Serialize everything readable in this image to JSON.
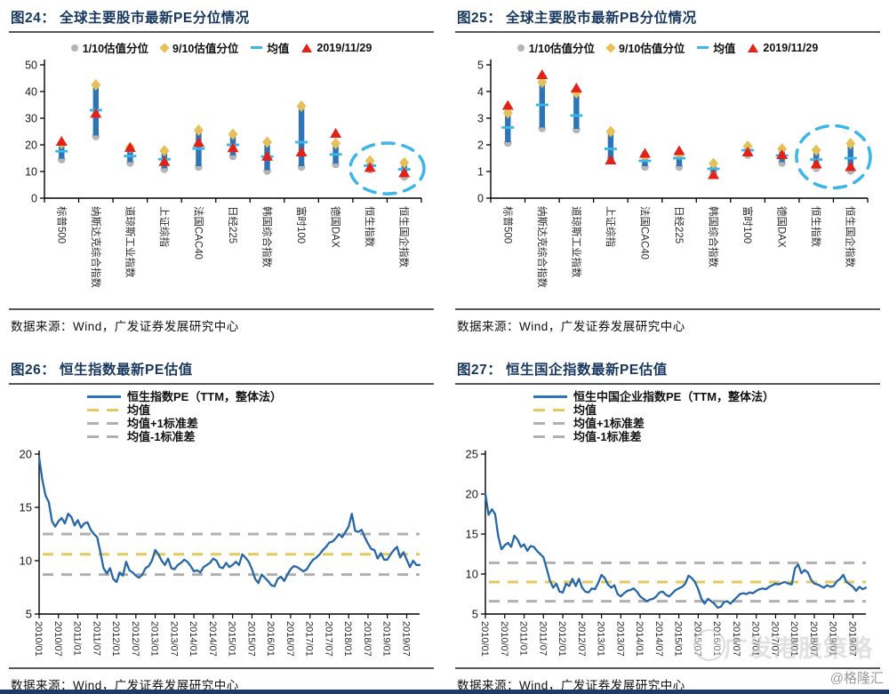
{
  "page": {
    "source_text": "数据来源：Wind，广发证券发展研究中心",
    "watermark_logo": "广发港股策略",
    "watermark_handle": "@格隆汇"
  },
  "colors": {
    "title_navy": "#17375e",
    "bar_blue": "#2e75b6",
    "line_blue": "#2667a8",
    "gray_marker": "#b5b5b5",
    "gold_marker": "#e6c159",
    "cyan_mean": "#3cb6e8",
    "red_current": "#e32119",
    "mean_dash_yellow": "#e5c85e",
    "std_dash_gray": "#b0b0b0",
    "highlight_ellipse": "#3cb6e8"
  },
  "panels": [
    {
      "title": "图24： 全球主要股市最新PE分位情况",
      "legend": [
        "1/10估值分位",
        "9/10估值分位",
        "均值",
        "2019/11/29"
      ],
      "chart_data": {
        "type": "range",
        "title": "全球主要股市最新PE分位情况",
        "ylim": [
          0,
          50
        ],
        "yticks": [
          0,
          10,
          20,
          30,
          40,
          50
        ],
        "categories": [
          "标普500",
          "纳斯达克综合指数",
          "道琼斯工业指数",
          "上证综指",
          "法国CAC40",
          "日经225",
          "韩国综合指数",
          "富时100",
          "德国DAX",
          "恒生指数",
          "恒生国企指数"
        ],
        "series": [
          {
            "name": "1/10估值分位",
            "marker": "circle",
            "values": [
              14.8,
              23.5,
              13.5,
              11.2,
              12.0,
              16.0,
              10.5,
              12.0,
              13.0,
              11.0,
              8.3
            ]
          },
          {
            "name": "9/10估值分位",
            "marker": "diamond",
            "values": [
              20.6,
              42.5,
              19.0,
              17.8,
              25.5,
              24.0,
              21.0,
              34.5,
              20.5,
              14.0,
              13.3
            ]
          },
          {
            "name": "均值",
            "marker": "dash",
            "values": [
              17.6,
              33.0,
              15.8,
              14.6,
              18.6,
              20.0,
              15.6,
              21.0,
              16.4,
              12.2,
              10.8
            ]
          },
          {
            "name": "2019/11/29",
            "marker": "triangle",
            "values": [
              21.0,
              31.5,
              18.7,
              13.4,
              20.6,
              18.6,
              15.4,
              17.0,
              24.0,
              11.2,
              9.2
            ]
          }
        ],
        "highlight_categories": [
          9,
          10
        ]
      }
    },
    {
      "title": "图25： 全球主要股市最新PB分位情况",
      "legend": [
        "1/10估值分位",
        "9/10估值分位",
        "均值",
        "2019/11/29"
      ],
      "chart_data": {
        "type": "range",
        "title": "全球主要股市最新PB分位情况",
        "ylim": [
          0,
          5
        ],
        "yticks": [
          0,
          1,
          2,
          3,
          4,
          5
        ],
        "categories": [
          "标普500",
          "纳斯达克综合指数",
          "道琼斯工业指数",
          "上证综指",
          "法国CAC40",
          "日经225",
          "韩国综合指数",
          "富时100",
          "德国DAX",
          "恒生指数",
          "恒生国企指数"
        ],
        "series": [
          {
            "name": "1/10估值分位",
            "marker": "circle",
            "values": [
              2.1,
              2.65,
              2.6,
              1.5,
              1.2,
              1.2,
              0.98,
              1.65,
              1.35,
              1.15,
              1.05
            ]
          },
          {
            "name": "9/10估值分位",
            "marker": "diamond",
            "values": [
              3.2,
              4.35,
              3.95,
              2.5,
              1.55,
              1.65,
              1.3,
              1.95,
              1.85,
              1.8,
              2.05
            ]
          },
          {
            "name": "均值",
            "marker": "dash",
            "values": [
              2.65,
              3.5,
              3.1,
              1.85,
              1.4,
              1.5,
              1.1,
              1.8,
              1.6,
              1.45,
              1.5
            ]
          },
          {
            "name": "2019/11/29",
            "marker": "triangle",
            "values": [
              3.45,
              4.6,
              4.1,
              1.4,
              1.65,
              1.75,
              0.85,
              1.7,
              1.6,
              1.25,
              1.15
            ]
          }
        ],
        "highlight_categories": [
          9,
          10
        ]
      }
    },
    {
      "title": "图26： 恒生指数最新PE估值",
      "legend": [
        "恒生指数PE（TTM，整体法）",
        "均值",
        "均值+1标准差",
        "均值-1标准差"
      ],
      "chart_data": {
        "type": "line",
        "title": "恒生指数最新PE估值",
        "ylim": [
          5,
          20
        ],
        "yticks": [
          5,
          10,
          15,
          20
        ],
        "mean": 10.6,
        "std_plus": 12.5,
        "std_minus": 8.7,
        "x_labels": [
          "2010/01",
          "2010/07",
          "2011/01",
          "2011/07",
          "2012/01",
          "2012/07",
          "2013/01",
          "2013/07",
          "2014/01",
          "2014/07",
          "2015/01",
          "2015/07",
          "2016/01",
          "2016/07",
          "2017/01",
          "2017/07",
          "2018/01",
          "2018/07",
          "2019/01",
          "2019/07"
        ],
        "x_label_step": 6,
        "values": [
          19.7,
          17.6,
          16.1,
          15.5,
          13.7,
          13.2,
          13.7,
          14.0,
          13.5,
          14.4,
          14.1,
          13.3,
          13.8,
          13.1,
          13.5,
          13.6,
          12.9,
          12.5,
          12.2,
          10.8,
          9.3,
          8.8,
          9.3,
          8.3,
          8.0,
          8.9,
          8.6,
          9.9,
          9.1,
          8.9,
          8.6,
          8.4,
          8.7,
          9.3,
          9.5,
          10.0,
          11.0,
          10.6,
          10.0,
          9.6,
          10.2,
          9.3,
          9.2,
          9.6,
          9.8,
          10.1,
          9.9,
          9.5,
          9.0,
          9.1,
          8.9,
          9.4,
          9.6,
          9.8,
          10.2,
          10.0,
          9.4,
          9.3,
          9.8,
          9.4,
          9.6,
          9.9,
          9.6,
          10.6,
          10.3,
          9.9,
          9.2,
          8.3,
          7.9,
          8.7,
          8.4,
          8.1,
          7.7,
          7.6,
          8.3,
          8.5,
          8.1,
          8.7,
          9.2,
          9.5,
          9.4,
          9.2,
          9.0,
          9.2,
          9.7,
          10.1,
          10.3,
          10.6,
          11.0,
          11.3,
          11.7,
          11.8,
          12.1,
          12.5,
          12.2,
          12.7,
          13.2,
          14.4,
          12.8,
          12.7,
          12.9,
          12.2,
          11.6,
          11.1,
          11.0,
          10.2,
          10.7,
          10.1,
          10.1,
          10.6,
          11.0,
          11.3,
          10.3,
          10.8,
          10.1,
          9.4,
          10.0,
          9.6,
          9.6
        ]
      }
    },
    {
      "title": "图27： 恒生国企指数最新PE估值",
      "legend": [
        "恒生中国企业指数PE（TTM，整体法）",
        "均值",
        "均值+1标准差",
        "均值-1标准差"
      ],
      "chart_data": {
        "type": "line",
        "title": "恒生国企指数最新PE估值",
        "ylim": [
          5,
          25
        ],
        "yticks": [
          5,
          10,
          15,
          20,
          25
        ],
        "mean": 9.0,
        "std_plus": 11.4,
        "std_minus": 6.6,
        "x_labels": [
          "2010/01",
          "2010/07",
          "2011/01",
          "2011/07",
          "2012/01",
          "2012/07",
          "2013/01",
          "2013/07",
          "2014/01",
          "2014/07",
          "2015/01",
          "2015/07",
          "2016/01",
          "2016/07",
          "2017/01",
          "2017/07",
          "2018/01",
          "2018/07",
          "2019/01",
          "2019/07"
        ],
        "x_label_step": 6,
        "values": [
          20.0,
          17.4,
          18.1,
          17.5,
          14.7,
          13.1,
          13.6,
          13.9,
          13.4,
          14.8,
          14.3,
          13.4,
          13.7,
          12.9,
          13.5,
          13.4,
          12.9,
          12.5,
          12.1,
          10.7,
          9.2,
          8.3,
          8.8,
          7.8,
          7.7,
          8.8,
          8.5,
          9.4,
          8.5,
          9.4,
          8.3,
          7.8,
          7.7,
          8.2,
          8.1,
          8.9,
          9.9,
          9.5,
          8.7,
          8.3,
          8.6,
          7.5,
          7.2,
          7.6,
          7.9,
          8.0,
          8.2,
          7.8,
          7.2,
          6.9,
          6.6,
          6.8,
          6.9,
          7.2,
          7.7,
          7.8,
          7.4,
          7.2,
          7.6,
          8.0,
          8.2,
          8.4,
          8.8,
          9.8,
          9.5,
          9.0,
          8.1,
          6.9,
          6.3,
          6.9,
          6.6,
          6.3,
          5.8,
          5.9,
          6.5,
          6.6,
          6.3,
          6.7,
          7.1,
          7.5,
          7.6,
          7.5,
          7.7,
          7.6,
          7.9,
          8.1,
          8.2,
          8.1,
          8.4,
          8.6,
          8.8,
          8.7,
          8.9,
          9.0,
          8.8,
          8.7,
          10.7,
          11.2,
          10.1,
          10.5,
          10.2,
          9.3,
          8.8,
          8.7,
          8.5,
          8.3,
          8.6,
          8.4,
          8.5,
          9.1,
          9.4,
          9.9,
          9.0,
          8.7,
          8.4,
          7.9,
          8.4,
          8.1,
          8.3
        ]
      }
    }
  ]
}
